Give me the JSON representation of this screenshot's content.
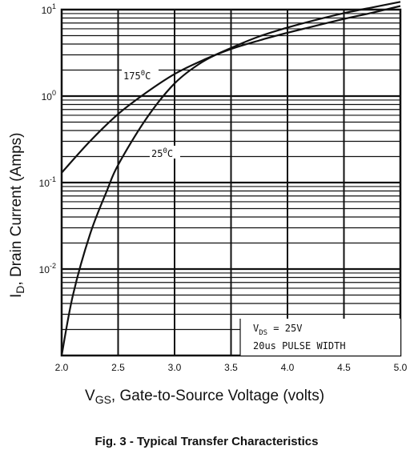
{
  "chart_data": {
    "type": "line",
    "ylog": true,
    "xlim": [
      2.0,
      5.0
    ],
    "ylim": [
      0.001,
      10
    ],
    "grid": true,
    "x_ticks": [
      "2.0",
      "2.5",
      "3.0",
      "3.5",
      "4.0",
      "4.5",
      "5.0"
    ],
    "y_ticks": [
      {
        "value": 10,
        "base": "10",
        "exp": "1"
      },
      {
        "value": 1,
        "base": "10",
        "exp": "0"
      },
      {
        "value": 0.1,
        "base": "10",
        "exp": "-1"
      },
      {
        "value": 0.01,
        "base": "10",
        "exp": "-2"
      }
    ],
    "xlabel": {
      "main": "V",
      "sub": "GS",
      "rest": ", Gate-to-Source Voltage (volts)"
    },
    "ylabel": {
      "main": "I",
      "sub": "D",
      "rest": ", Drain Current (Amps)"
    },
    "series": [
      {
        "name": "175°C",
        "label_base": "175",
        "label_sup": "0",
        "label_unit": "C",
        "x": [
          2.0,
          2.25,
          2.5,
          2.75,
          3.0,
          3.25,
          3.5,
          3.75,
          4.0,
          4.25,
          4.5,
          4.75,
          5.0
        ],
        "y": [
          0.13,
          0.3,
          0.62,
          1.1,
          1.8,
          2.6,
          3.5,
          4.4,
          5.4,
          6.5,
          7.8,
          9.2,
          11
        ]
      },
      {
        "name": "25°C",
        "label_base": "25",
        "label_sup": "0",
        "label_unit": "C",
        "x": [
          2.0,
          2.1,
          2.25,
          2.4,
          2.5,
          2.75,
          3.0,
          3.25,
          3.5,
          3.75,
          4.0,
          4.25,
          4.5,
          4.75,
          5.0
        ],
        "y": [
          0.001,
          0.005,
          0.025,
          0.08,
          0.16,
          0.55,
          1.4,
          2.5,
          3.6,
          4.9,
          6.2,
          7.6,
          9.1,
          10.6,
          12.3
        ]
      }
    ],
    "annotation": {
      "line1": {
        "pre": "V",
        "sub": "DS",
        "post": " = 25V"
      },
      "line2": "20us PULSE WIDTH"
    }
  },
  "caption": "Fig. 3 - Typical Transfer Characteristics"
}
